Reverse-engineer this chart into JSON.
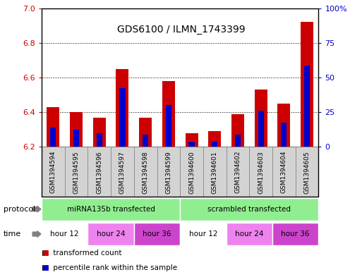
{
  "title": "GDS6100 / ILMN_1743399",
  "samples": [
    "GSM1394594",
    "GSM1394595",
    "GSM1394596",
    "GSM1394597",
    "GSM1394598",
    "GSM1394599",
    "GSM1394600",
    "GSM1394601",
    "GSM1394602",
    "GSM1394603",
    "GSM1394604",
    "GSM1394605"
  ],
  "bar_base": 6.2,
  "red_tops": [
    6.43,
    6.4,
    6.37,
    6.65,
    6.37,
    6.58,
    6.28,
    6.29,
    6.39,
    6.53,
    6.45,
    6.92
  ],
  "blue_tops": [
    6.31,
    6.3,
    6.28,
    6.54,
    6.27,
    6.44,
    6.23,
    6.23,
    6.27,
    6.41,
    6.34,
    6.67
  ],
  "ylim_left": [
    6.2,
    7.0
  ],
  "ylim_right": [
    0,
    100
  ],
  "yticks_left": [
    6.2,
    6.4,
    6.6,
    6.8,
    7.0
  ],
  "yticks_right": [
    0,
    25,
    50,
    75,
    100
  ],
  "ytick_labels_right": [
    "0",
    "25",
    "50",
    "75",
    "100%"
  ],
  "protocol_groups": [
    {
      "label": "miRNA135b transfected",
      "start": 0,
      "end": 6
    },
    {
      "label": "scrambled transfected",
      "start": 6,
      "end": 12
    }
  ],
  "time_groups": [
    {
      "label": "hour 12",
      "start": 0,
      "end": 2,
      "color": "#FFFFFF"
    },
    {
      "label": "hour 24",
      "start": 2,
      "end": 4,
      "color": "#EE82EE"
    },
    {
      "label": "hour 36",
      "start": 4,
      "end": 6,
      "color": "#CC44CC"
    },
    {
      "label": "hour 12",
      "start": 6,
      "end": 8,
      "color": "#FFFFFF"
    },
    {
      "label": "hour 24",
      "start": 8,
      "end": 10,
      "color": "#EE82EE"
    },
    {
      "label": "hour 36",
      "start": 10,
      "end": 12,
      "color": "#CC44CC"
    }
  ],
  "bar_color_red": "#CC0000",
  "bar_color_blue": "#0000CC",
  "bar_width": 0.55,
  "blue_bar_width": 0.25,
  "sample_bg_color": "#D3D3D3",
  "plot_bg_color": "#FFFFFF",
  "proto_color": "#90EE90",
  "left_tick_color": "#CC0000",
  "right_tick_color": "#0000CC"
}
